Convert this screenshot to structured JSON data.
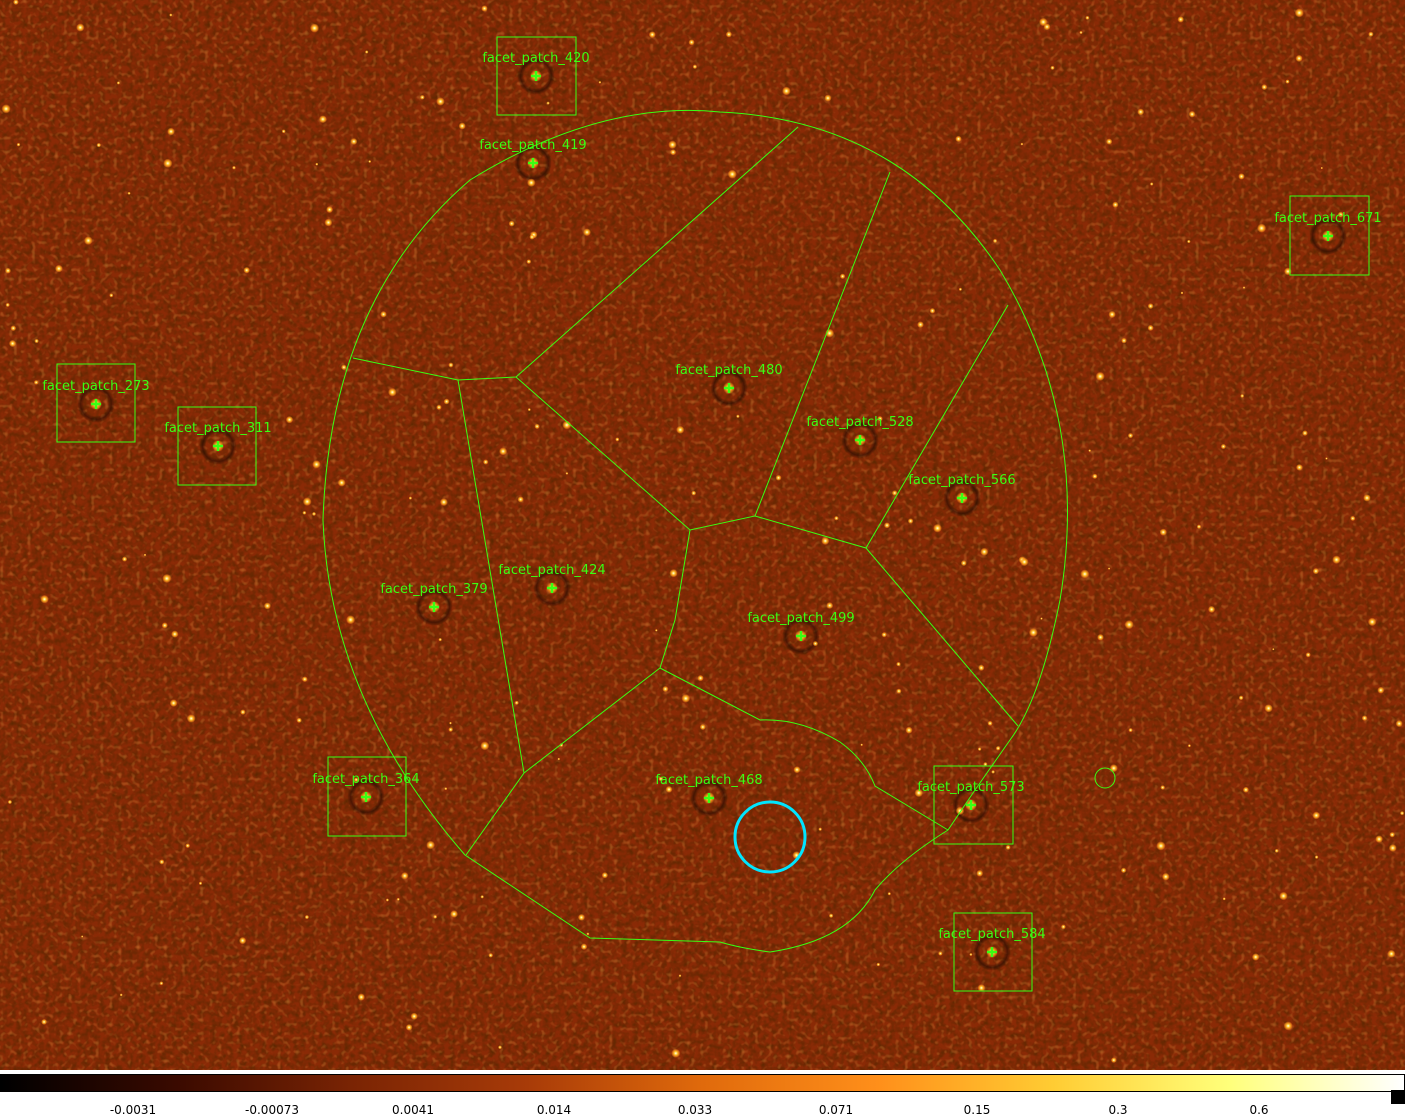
{
  "image": {
    "colormap": [
      "#000000",
      "#3a0a00",
      "#7a2404",
      "#a83b08",
      "#e06a0c",
      "#ff8f1a",
      "#ffcc33",
      "#ffff7a",
      "#ffffff"
    ],
    "overlay_color": "#39ff14",
    "marker_color": "#00e5ff"
  },
  "facets": [
    {
      "label": "facet_patch_420"
    },
    {
      "label": "facet_patch_419"
    },
    {
      "label": "facet_patch_671"
    },
    {
      "label": "facet_patch_273"
    },
    {
      "label": "facet_patch_311"
    },
    {
      "label": "facet_patch_480"
    },
    {
      "label": "facet_patch_528"
    },
    {
      "label": "facet_patch_566"
    },
    {
      "label": "facet_patch_424"
    },
    {
      "label": "facet_patch_379"
    },
    {
      "label": "facet_patch_499"
    },
    {
      "label": "facet_patch_364"
    },
    {
      "label": "facet_patch_468"
    },
    {
      "label": "facet_patch_573"
    },
    {
      "label": "facet_patch_584"
    }
  ],
  "colorbar": {
    "ticks": [
      "-0.0031",
      "-0.00073",
      "0.0041",
      "0.014",
      "0.033",
      "0.071",
      "0.15",
      "0.3",
      "0.6"
    ]
  }
}
